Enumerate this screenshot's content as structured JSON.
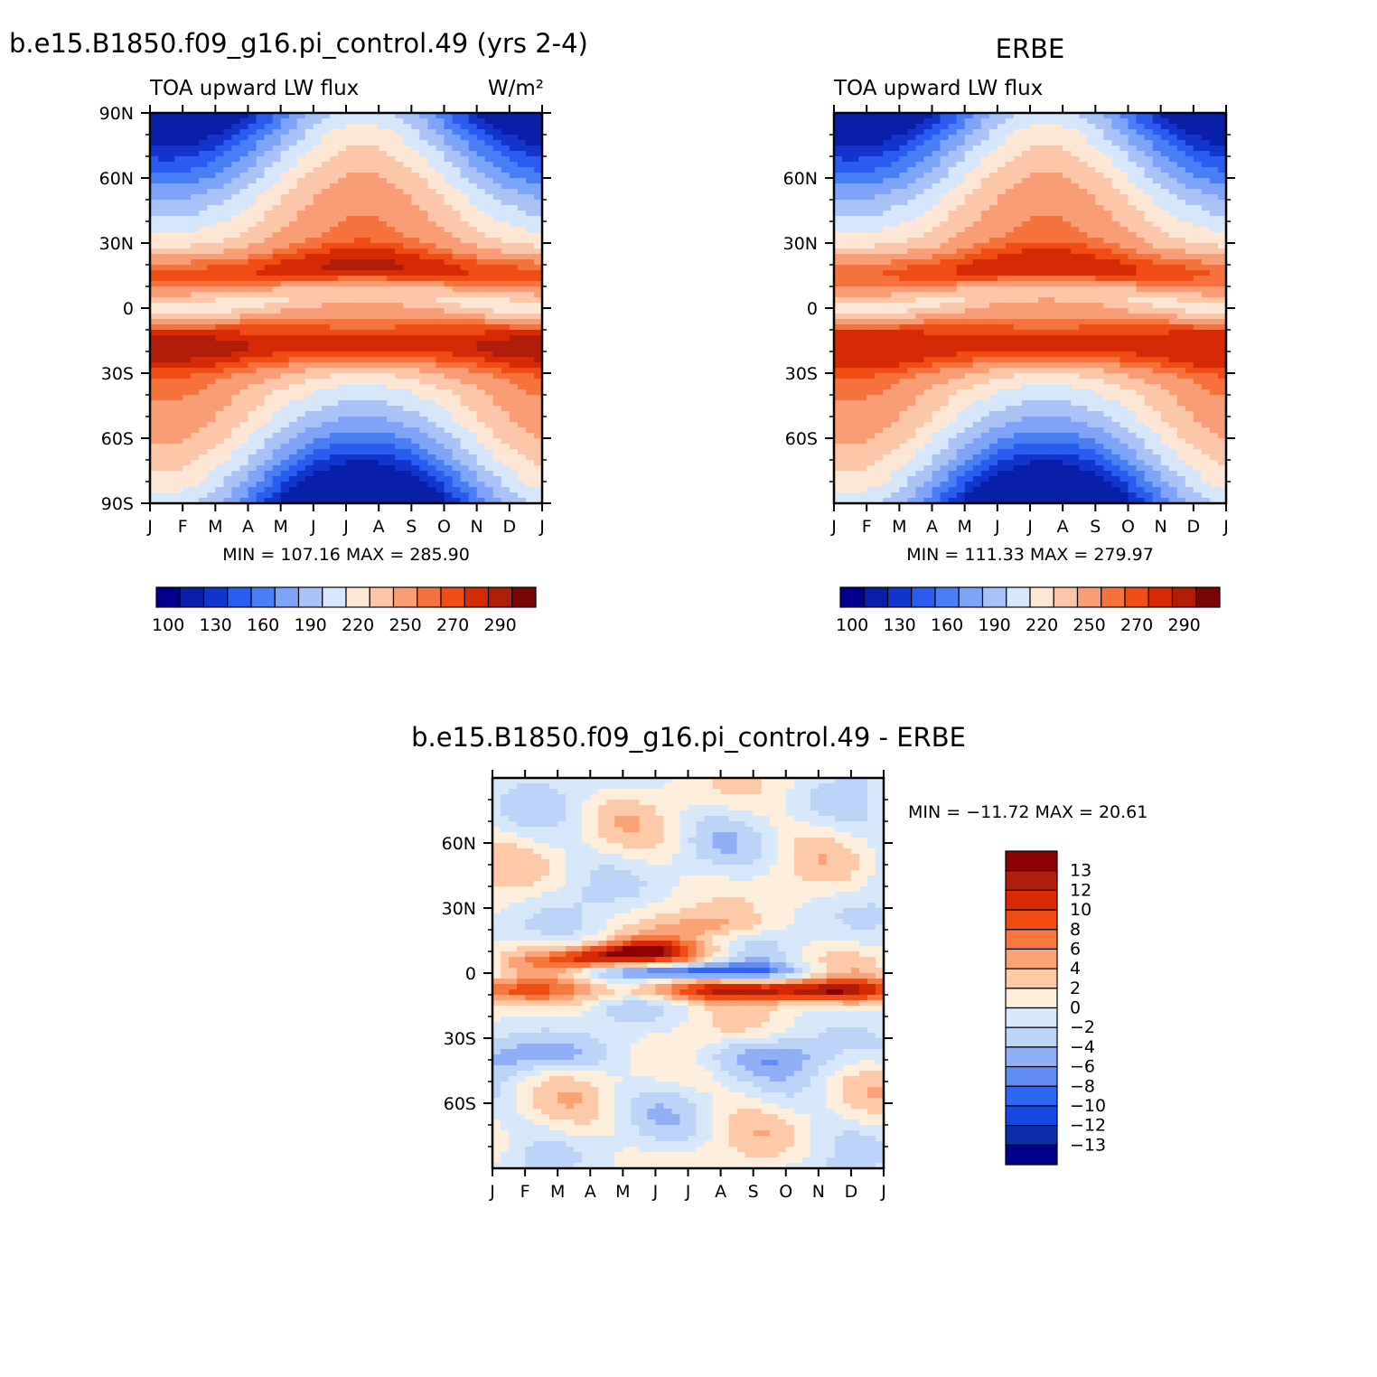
{
  "figure": {
    "main_title": "b.e15.B1850.f09_g16.pi_control.49 (yrs 2-4)",
    "obs_title": "ERBE",
    "diff_title": "b.e15.B1850.f09_g16.pi_control.49 - ERBE"
  },
  "colors": {
    "abs_palette": [
      "#00008c",
      "#0a1fa8",
      "#1435cc",
      "#2a5cf0",
      "#4a7ef5",
      "#7ea4f7",
      "#aac3f7",
      "#d6e6fb",
      "#fde6d4",
      "#fcc6a8",
      "#f99d76",
      "#f7733e",
      "#f04d14",
      "#d62a06",
      "#b01c0a",
      "#7a0505"
    ],
    "diff_palette": [
      "#00008c",
      "#0a2fa8",
      "#1746e0",
      "#2e66f5",
      "#5f8cf5",
      "#8fb0f7",
      "#bdd4f9",
      "#d8e8fb",
      "#fdeedc",
      "#fdc9a6",
      "#fba277",
      "#f7783f",
      "#ee4c13",
      "#d52a05",
      "#b01c0a",
      "#8b0000"
    ]
  },
  "chart_data": [
    {
      "id": "model",
      "type": "heatmap",
      "subtitle_left": "TOA upward LW flux",
      "units": "W/m²",
      "x_tick_labels": [
        "J",
        "F",
        "M",
        "A",
        "M",
        "J",
        "J",
        "A",
        "S",
        "O",
        "N",
        "D",
        "J"
      ],
      "y_tick_labels": [
        "90N",
        "60N",
        "30N",
        "0",
        "30S",
        "60S",
        "90S"
      ],
      "y_tick_values": [
        90,
        60,
        30,
        0,
        -30,
        -60,
        -90
      ],
      "xlim": [
        0,
        12
      ],
      "ylim": [
        -90,
        90
      ],
      "stats_text": "MIN = 107.16 MAX = 285.90",
      "min": 107.16,
      "max": 285.9,
      "colorbar_levels": [
        100,
        115,
        130,
        145,
        160,
        175,
        190,
        205,
        220,
        235,
        250,
        260,
        270,
        280,
        290
      ],
      "colorbar_labels": [
        "100",
        "130",
        "160",
        "190",
        "220",
        "250",
        "270",
        "290"
      ]
    },
    {
      "id": "obs",
      "type": "heatmap",
      "subtitle_left": "TOA upward LW flux",
      "x_tick_labels": [
        "J",
        "F",
        "M",
        "A",
        "M",
        "J",
        "J",
        "A",
        "S",
        "O",
        "N",
        "D",
        "J"
      ],
      "y_tick_labels": [
        "60N",
        "30N",
        "0",
        "30S",
        "60S"
      ],
      "y_tick_values": [
        60,
        30,
        0,
        -30,
        -60
      ],
      "xlim": [
        0,
        12
      ],
      "ylim": [
        -90,
        90
      ],
      "stats_text": "MIN = 111.33 MAX = 279.97",
      "min": 111.33,
      "max": 279.97,
      "colorbar_levels": [
        100,
        115,
        130,
        145,
        160,
        175,
        190,
        205,
        220,
        235,
        250,
        260,
        270,
        280,
        290
      ],
      "colorbar_labels": [
        "100",
        "130",
        "160",
        "190",
        "220",
        "250",
        "270",
        "290"
      ]
    },
    {
      "id": "diff",
      "type": "heatmap",
      "x_tick_labels": [
        "J",
        "F",
        "M",
        "A",
        "M",
        "J",
        "J",
        "A",
        "S",
        "O",
        "N",
        "D",
        "J"
      ],
      "y_tick_labels": [
        "60N",
        "30N",
        "0",
        "30S",
        "60S"
      ],
      "y_tick_values": [
        60,
        30,
        0,
        -30,
        -60
      ],
      "xlim": [
        0,
        12
      ],
      "ylim": [
        -90,
        90
      ],
      "stats_text": "MIN = −11.72 MAX =  20.61",
      "min": -11.72,
      "max": 20.61,
      "colorbar_levels": [
        -13,
        -12,
        -10,
        -8,
        -6,
        -4,
        -2,
        0,
        2,
        4,
        6,
        8,
        10,
        12,
        13
      ],
      "colorbar_labels": [
        "13",
        "12",
        "10",
        "8",
        "6",
        "4",
        "2",
        "0",
        "−2",
        "−4",
        "−6",
        "−8",
        "−10",
        "−12",
        "−13"
      ]
    }
  ]
}
